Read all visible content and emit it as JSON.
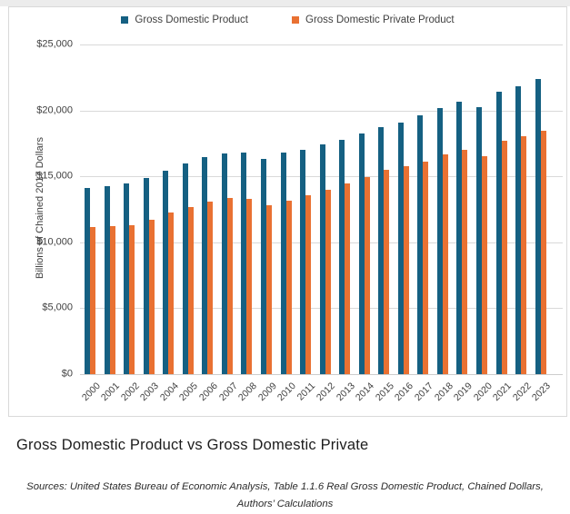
{
  "legend": {
    "items": [
      {
        "label": "Gross Domestic Product",
        "color": "#156082"
      },
      {
        "label": "Gross Domestic Private Product",
        "color": "#E97132"
      }
    ]
  },
  "y_axis": {
    "title": "Billions of Chained 2017 Dollars",
    "ticks": [
      {
        "label": "$25,000",
        "value": 25000
      },
      {
        "label": "$20,000",
        "value": 20000
      },
      {
        "label": "$15,000",
        "value": 15000
      },
      {
        "label": "$10,000",
        "value": 10000
      },
      {
        "label": "$5,000",
        "value": 5000
      },
      {
        "label": "$0",
        "value": 0
      }
    ]
  },
  "footer": {
    "title": "Gross Domestic Product vs Gross Domestic Private",
    "source_line1": "Sources: United States Bureau of Economic Analysis, Table 1.1.6 Real Gross Domestic Product, Chained Dollars,",
    "source_line2": "Authors’ Calculations"
  },
  "chart_data": {
    "type": "bar",
    "title": "Gross Domestic Product vs Gross Domestic Private",
    "ylabel": "Billions of Chained 2017 Dollars",
    "ylim": [
      0,
      25000
    ],
    "ytick_interval": 5000,
    "grid": true,
    "legend_position": "top",
    "categories": [
      "2000",
      "2001",
      "2002",
      "2003",
      "2004",
      "2005",
      "2006",
      "2007",
      "2008",
      "2009",
      "2010",
      "2011",
      "2012",
      "2013",
      "2014",
      "2015",
      "2016",
      "2017",
      "2018",
      "2019",
      "2020",
      "2021",
      "2022",
      "2023"
    ],
    "series": [
      {
        "name": "Gross Domestic Product",
        "color": "#156082",
        "values": [
          14100,
          14230,
          14470,
          14880,
          15450,
          15990,
          16430,
          16760,
          16780,
          16310,
          16790,
          17000,
          17400,
          17760,
          18240,
          18770,
          19110,
          19600,
          20160,
          20690,
          20230,
          21390,
          21810,
          22380
        ]
      },
      {
        "name": "Gross Domestic Private Product",
        "color": "#E97132",
        "values": [
          11170,
          11220,
          11330,
          11680,
          12280,
          12710,
          13100,
          13380,
          13310,
          12780,
          13170,
          13540,
          13980,
          14480,
          14980,
          15490,
          15770,
          16090,
          16690,
          17030,
          16500,
          17680,
          18070,
          18480
        ]
      }
    ]
  }
}
